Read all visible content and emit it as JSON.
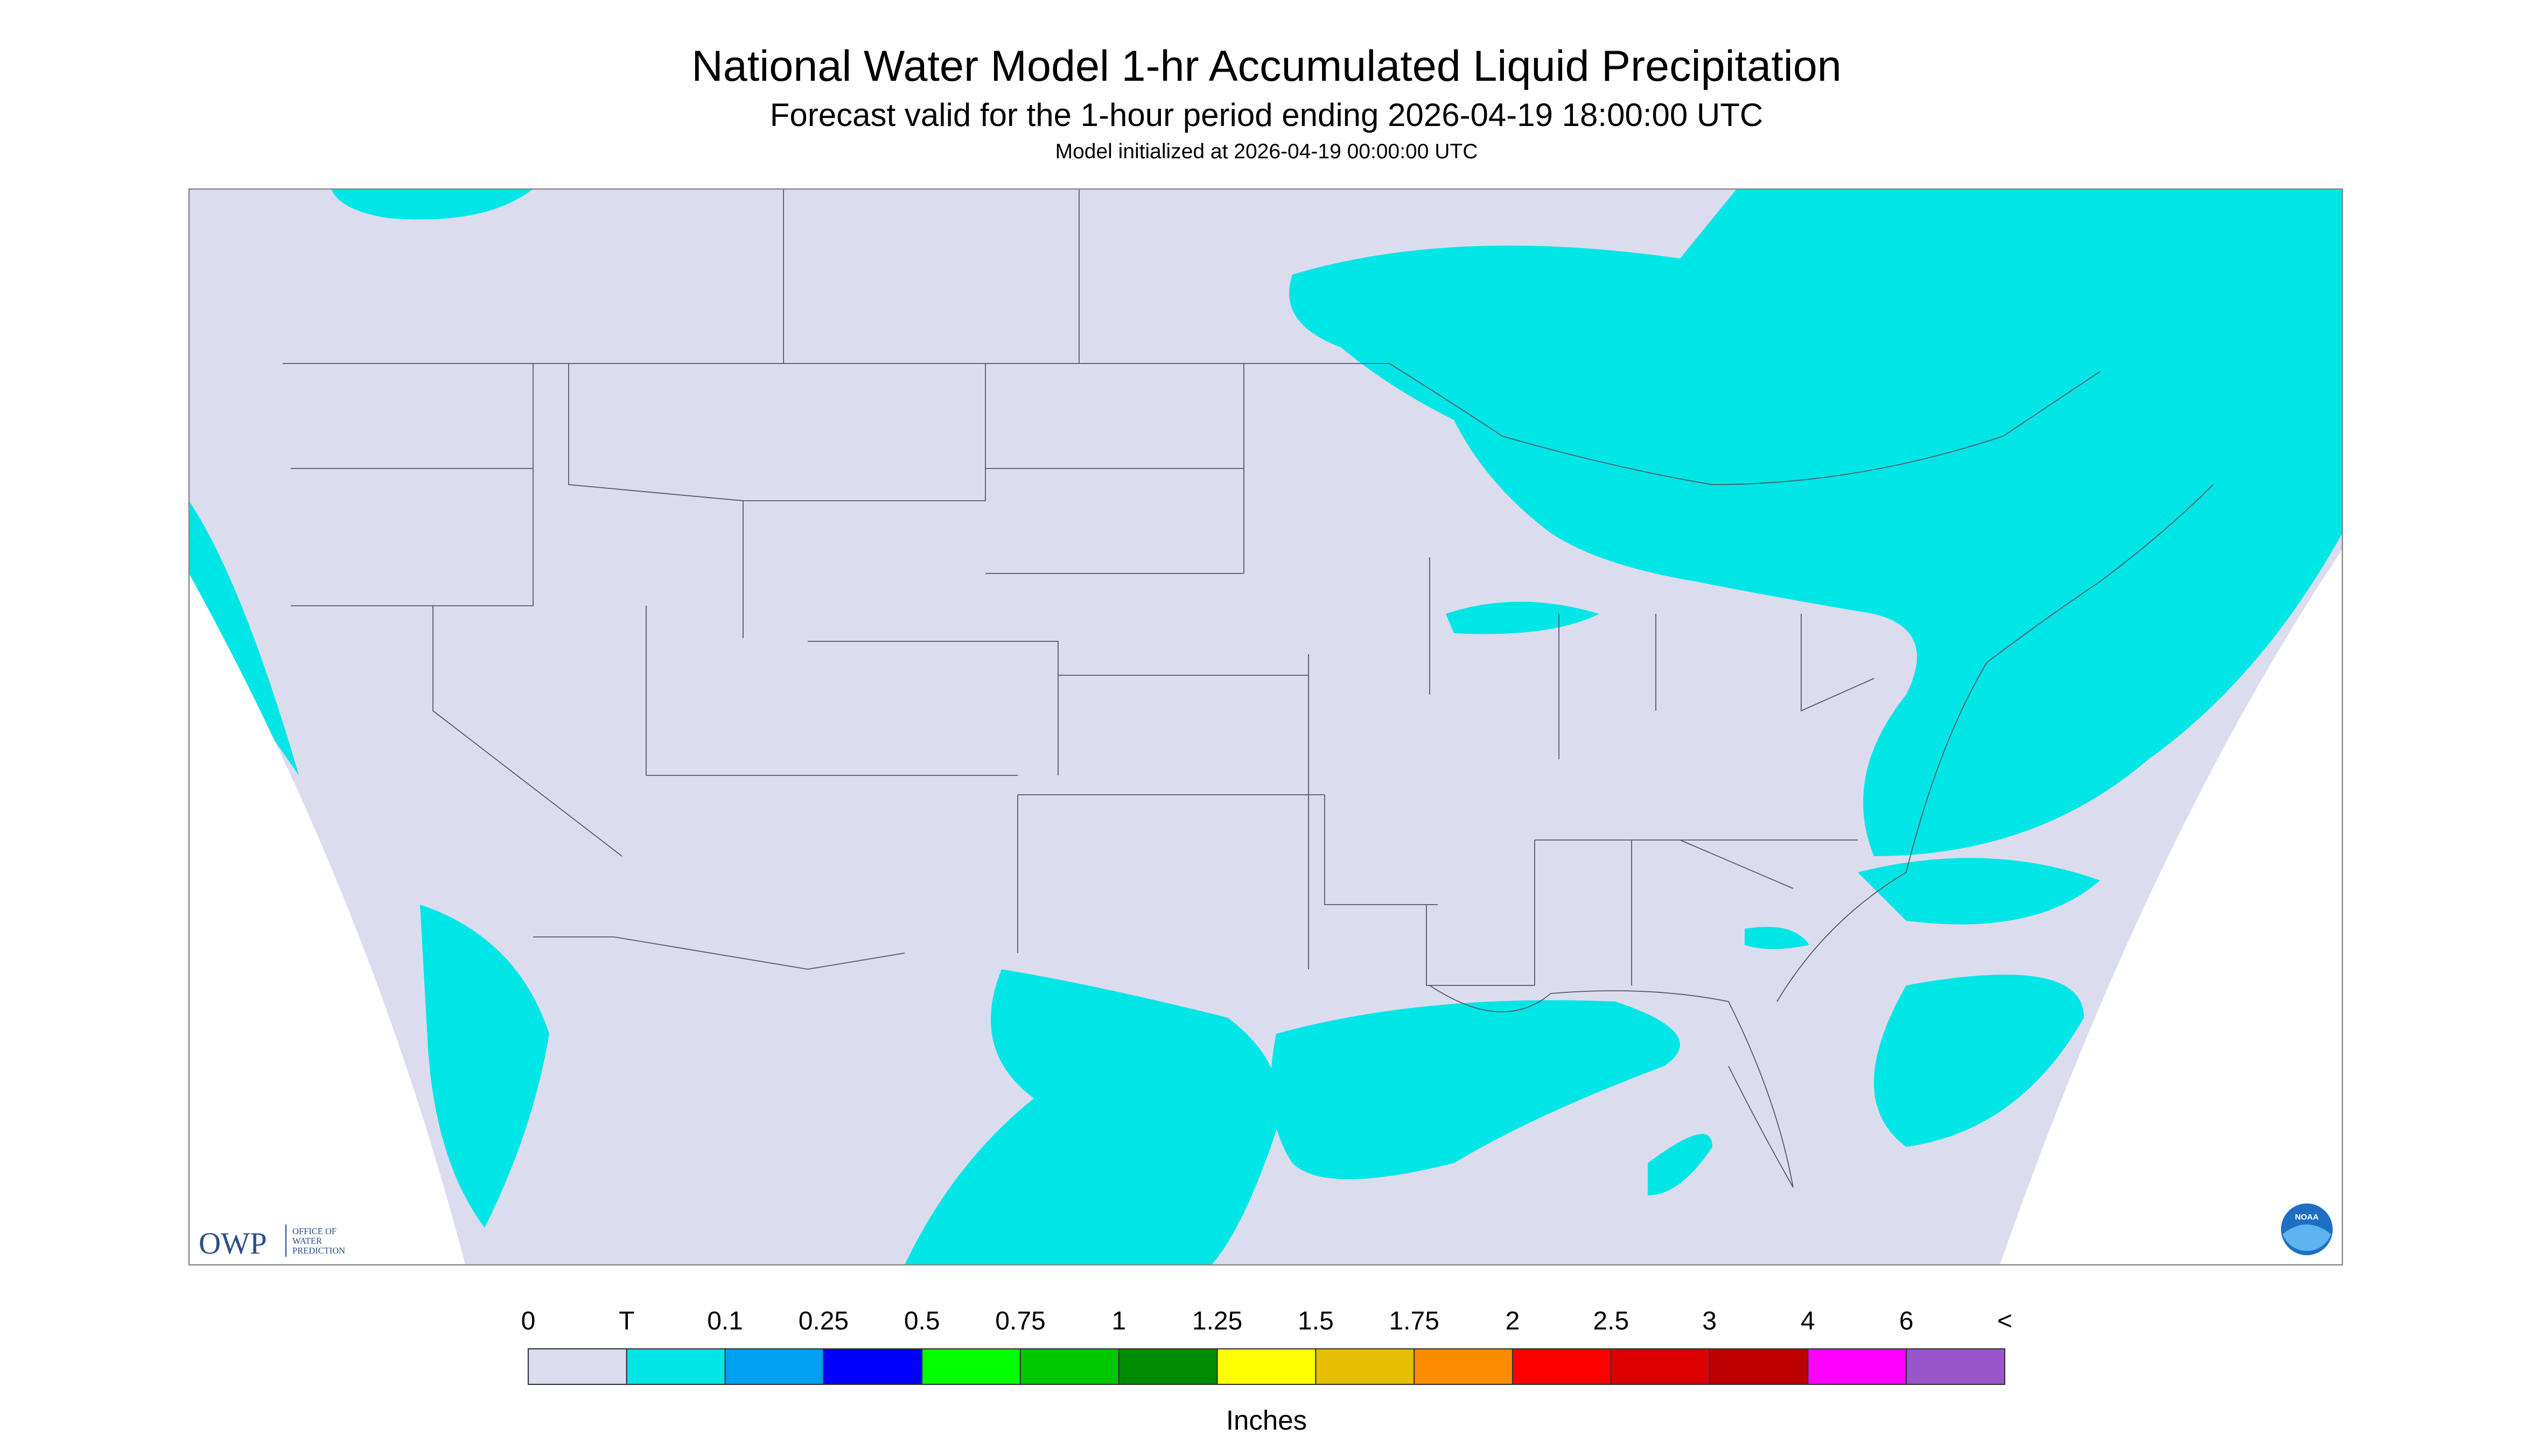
{
  "header": {
    "title": "National Water Model 1-hr Accumulated Liquid Precipitation",
    "subtitle": "Forecast valid for the 1-hour period ending 2026-04-19 18:00:00 UTC",
    "initialized": "Model initialized at 2026-04-19 00:00:00 UTC"
  },
  "legend": {
    "labels": [
      "0",
      "T",
      "0.1",
      "0.25",
      "0.5",
      "0.75",
      "1",
      "1.25",
      "1.5",
      "1.75",
      "2",
      "2.5",
      "3",
      "4",
      "6",
      "<"
    ],
    "colors": [
      "#dcdcef",
      "#00e6e6",
      "#00a0f0",
      "#0000ff",
      "#00ff00",
      "#00c800",
      "#008c00",
      "#ffff00",
      "#e6be00",
      "#ff8c00",
      "#ff0000",
      "#dc0000",
      "#be0000",
      "#ff00ff",
      "#9955c9"
    ],
    "units": "Inches"
  },
  "logos": {
    "owp": "OWP",
    "owp_name": [
      "OFFICE OF",
      "WATER",
      "PREDICTION"
    ],
    "noaa": "NOAA"
  }
}
